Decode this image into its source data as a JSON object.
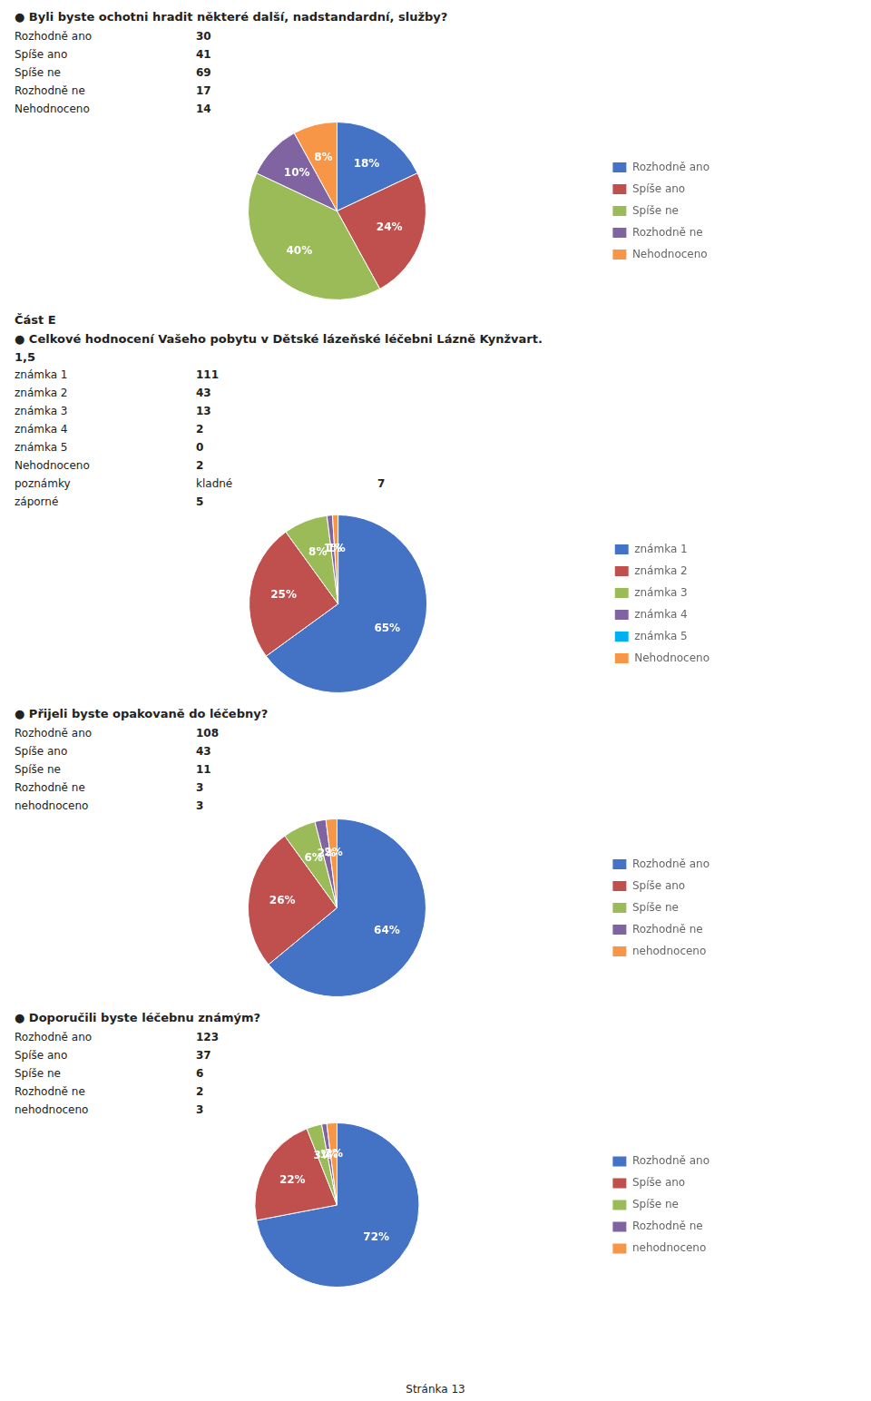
{
  "chart_data": [
    {
      "type": "pie",
      "title": "● Byli byste ochotni hradit některé další, nadstandardní, služby?",
      "categories": [
        "Rozhodně ano",
        "Spíše ano",
        "Spíše ne",
        "Rozhodně ne",
        "Nehodnoceno"
      ],
      "values": [
        18,
        24,
        40,
        10,
        8
      ],
      "value_labels": [
        "18%",
        "24%",
        "40%",
        "10%",
        "8%"
      ],
      "colors": [
        "#4472C4",
        "#C0504D",
        "#9BBB59",
        "#8064A2",
        "#F79646"
      ],
      "legend": "right",
      "data_labels": true,
      "annotations": [
        [
          "Rozhodně ano",
          "30"
        ],
        [
          "Spíše ano",
          "41"
        ],
        [
          "Spíše ne",
          "69"
        ],
        [
          "Rozhodně ne",
          "17"
        ],
        [
          "Nehodnoceno",
          "14"
        ]
      ]
    },
    {
      "type": "pie",
      "title": "● Celkové hodnocení Vašeho pobytu v Dětské lázeňské léčebni Lázně Kynžvart.",
      "subtitle": "1,5",
      "categories": [
        "známka 1",
        "známka 2",
        "známka 3",
        "známka 4",
        "známka 5",
        "Nehodnoceno"
      ],
      "values": [
        65,
        25,
        8,
        1,
        0,
        1
      ],
      "value_labels": [
        "65%",
        "25%",
        "8%",
        "1%",
        "0%",
        "1%"
      ],
      "colors": [
        "#4472C4",
        "#C0504D",
        "#9BBB59",
        "#8064A2",
        "#00B0F0",
        "#F79646"
      ],
      "legend": "right",
      "data_labels": true,
      "annotations": [
        [
          "známka 1",
          "111"
        ],
        [
          "známka 2",
          "43"
        ],
        [
          "známka 3",
          "13"
        ],
        [
          "známka 4",
          "2"
        ],
        [
          "známka 5",
          "0"
        ],
        [
          "Nehodnoceno",
          "2"
        ],
        [
          "poznámky",
          "kladné",
          "7"
        ],
        [
          "záporné",
          "5"
        ]
      ]
    },
    {
      "type": "pie",
      "title": "● Přijeli byste opakovaně do léčebny?",
      "categories": [
        "Rozhodně ano",
        "Spíše ano",
        "Spíše ne",
        "Rozhodně ne",
        "nehodnoceno"
      ],
      "values": [
        64,
        26,
        6,
        2,
        2
      ],
      "value_labels": [
        "64%",
        "26%",
        "6%",
        "2%",
        "2%"
      ],
      "colors": [
        "#4472C4",
        "#C0504D",
        "#9BBB59",
        "#8064A2",
        "#F79646"
      ],
      "legend": "right",
      "data_labels": true,
      "annotations": [
        [
          "Rozhodně ano",
          "108"
        ],
        [
          "Spíše ano",
          "43"
        ],
        [
          "Spíše ne",
          "11"
        ],
        [
          "Rozhodně ne",
          "3"
        ],
        [
          "nehodnoceno",
          "3"
        ]
      ]
    },
    {
      "type": "pie",
      "title": "● Doporučili byste léčebnu známým?",
      "categories": [
        "Rozhodně ano",
        "Spíše ano",
        "Spíše ne",
        "Rozhodně ne",
        "nehodnoceno"
      ],
      "values": [
        72,
        22,
        3,
        1,
        2
      ],
      "value_labels": [
        "72%",
        "22%",
        "3%",
        "1%",
        "2%"
      ],
      "colors": [
        "#4472C4",
        "#C0504D",
        "#9BBB59",
        "#8064A2",
        "#F79646"
      ],
      "legend": "right",
      "data_labels": true,
      "annotations": [
        [
          "Rozhodně ano",
          "123"
        ],
        [
          "Spíše ano",
          "37"
        ],
        [
          "Spíše ne",
          "6"
        ],
        [
          "Rozhodně ne",
          "2"
        ],
        [
          "nehodnoceno",
          "3"
        ]
      ]
    }
  ],
  "annotations": [
    "Část E",
    "Stránka 13"
  ]
}
